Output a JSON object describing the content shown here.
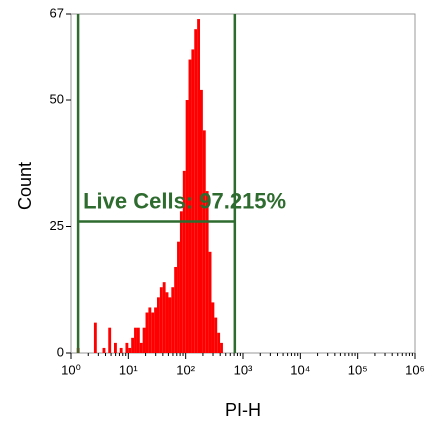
{
  "chart_data": {
    "type": "histogram",
    "xlabel": "PI-H",
    "ylabel": "Count",
    "xscale": "log",
    "xlim": [
      1,
      1000000
    ],
    "ylim": [
      0,
      67
    ],
    "xticks": [
      {
        "value": 1,
        "label": "10⁰"
      },
      {
        "value": 10,
        "label": "10¹"
      },
      {
        "value": 100,
        "label": "10²"
      },
      {
        "value": 1000,
        "label": "10³"
      },
      {
        "value": 10000,
        "label": "10⁴"
      },
      {
        "value": 100000,
        "label": "10⁵"
      },
      {
        "value": 1000000,
        "label": "10⁶"
      }
    ],
    "yticks": [
      0,
      25,
      50,
      67
    ],
    "color": "#ff0000",
    "bins": [
      1,
      1.122,
      1.259,
      1.413,
      1.585,
      1.778,
      1.995,
      2.239,
      2.512,
      2.818,
      3.162,
      3.548,
      3.981,
      4.467,
      5.012,
      5.623,
      6.31,
      7.079,
      7.943,
      8.913,
      10,
      11.22,
      12.59,
      14.13,
      15.85,
      17.78,
      19.95,
      22.39,
      25.12,
      28.18,
      31.62,
      35.48,
      39.81,
      44.67,
      50.12,
      56.23,
      63.1,
      70.79,
      79.43,
      89.13,
      100,
      112.2,
      125.9,
      141.3,
      158.5,
      177.8,
      199.5,
      223.9,
      251.2,
      281.8,
      316.2,
      354.8,
      398.1,
      446.7,
      501.2,
      562.3,
      631,
      707.9,
      794.3,
      891.3,
      1000
    ],
    "counts": [
      0,
      0,
      1,
      0,
      0,
      0,
      0,
      0,
      6,
      0,
      0,
      1,
      0,
      5,
      0,
      2,
      0,
      1,
      0,
      2,
      1,
      3,
      5,
      5,
      2,
      5,
      8,
      9,
      8,
      9,
      11,
      13,
      14,
      12,
      11,
      13,
      17,
      22,
      28,
      36,
      50,
      58,
      60,
      64,
      66,
      52,
      44,
      32,
      20,
      10,
      7,
      4,
      2,
      0,
      0,
      0,
      0,
      0,
      0,
      0
    ],
    "gate": {
      "label": "Live Cells: 97.215%",
      "xmin": 1.33,
      "xmax": 720,
      "y": 26,
      "color": "#2e6b2e"
    }
  }
}
